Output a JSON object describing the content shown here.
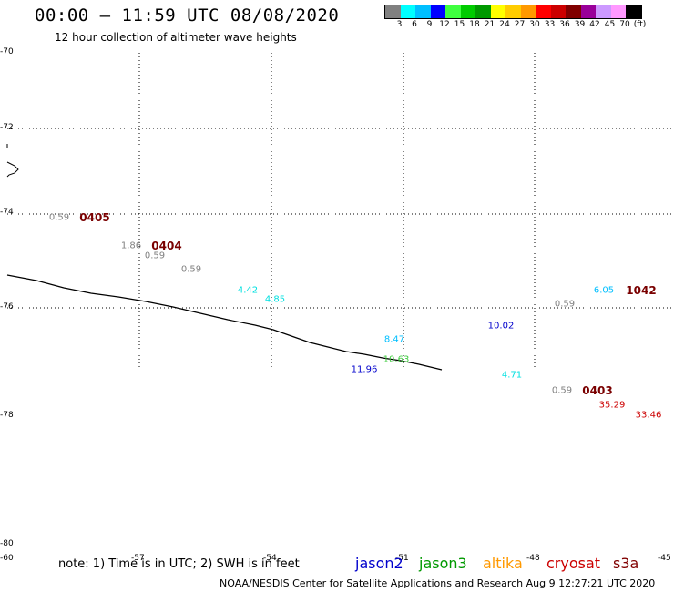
{
  "header": {
    "title": "00:00 – 11:59 UTC 08/08/2020",
    "subtitle": "12 hour collection of altimeter wave heights"
  },
  "legend": {
    "colors": [
      "#808080",
      "#00ffff",
      "#00bfff",
      "#0000ff",
      "#3fff3f",
      "#00cc00",
      "#009900",
      "#ffff00",
      "#ffcc00",
      "#ff9900",
      "#ff0000",
      "#cc0000",
      "#800000",
      "#990099",
      "#cc99ff",
      "#ff99ff",
      "#000000"
    ],
    "labels": [
      "3",
      "6",
      "9",
      "12",
      "15",
      "18",
      "21",
      "24",
      "27",
      "30",
      "33",
      "36",
      "39",
      "42",
      "45",
      "70",
      "(ft)"
    ]
  },
  "axes": {
    "lat_labels": [
      "-70",
      "-72",
      "-74",
      "-76",
      "-78",
      "-80"
    ],
    "lon_labels": [
      "-60",
      "-57",
      "-54",
      "-51",
      "-48",
      "-45"
    ]
  },
  "measurements": [
    {
      "text": "0.59",
      "color": "#808080"
    },
    {
      "text": "1.86",
      "color": "#808080"
    },
    {
      "text": "0.59",
      "color": "#808080"
    },
    {
      "text": "0.59",
      "color": "#808080"
    },
    {
      "text": "4.42",
      "color": "#00e0e0"
    },
    {
      "text": "4.85",
      "color": "#00e0e0"
    },
    {
      "text": "8.47",
      "color": "#00bfff"
    },
    {
      "text": "10.02",
      "color": "#0000cc"
    },
    {
      "text": "10.63",
      "color": "#3fcc3f"
    },
    {
      "text": "11.96",
      "color": "#0000cc"
    },
    {
      "text": "4.71",
      "color": "#00e0e0"
    },
    {
      "text": "0.59",
      "color": "#808080"
    },
    {
      "text": "6.05",
      "color": "#00bfff"
    },
    {
      "text": "0.59",
      "color": "#808080"
    },
    {
      "text": "35.29",
      "color": "#cc0000"
    },
    {
      "text": "33.46",
      "color": "#cc0000"
    }
  ],
  "pass_times": [
    "0405",
    "0404",
    "1042",
    "0403"
  ],
  "note": "note: 1) Time is in UTC; 2) SWH is in feet",
  "satellites": [
    {
      "name": "jason2",
      "color": "#0000cc"
    },
    {
      "name": "jason3",
      "color": "#009900"
    },
    {
      "name": "altika",
      "color": "#ff9900"
    },
    {
      "name": "cryosat",
      "color": "#cc0000"
    },
    {
      "name": "s3a",
      "color": "#800000"
    }
  ],
  "footer": "NOAA/NESDIS Center for Satellite Applications and Research    Aug  9 12:27:21 UTC 2020"
}
